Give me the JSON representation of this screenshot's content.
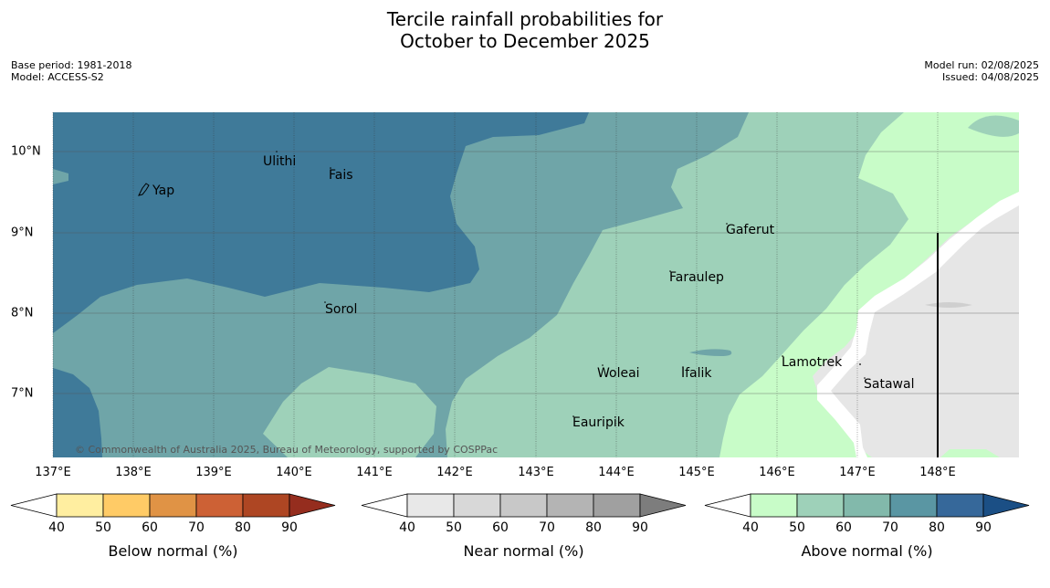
{
  "title_line1": "Tercile rainfall probabilities for",
  "title_line2": "October to December 2025",
  "base_period": "Base period: 1981-2018",
  "model": "Model: ACCESS-S2",
  "model_run": "Model run: 02/08/2025",
  "issued": "Issued: 04/08/2025",
  "copyright": "© Commonwealth of Australia 2025, Bureau of Meteorology, supported by COSPPac",
  "map": {
    "lon_labels": [
      "137°E",
      "138°E",
      "139°E",
      "140°E",
      "141°E",
      "142°E",
      "143°E",
      "144°E",
      "145°E",
      "146°E",
      "147°E",
      "148°E"
    ],
    "lat_labels": [
      "10°N",
      "9°N",
      "8°N",
      "7°N"
    ],
    "places": [
      {
        "name": "Ulithi"
      },
      {
        "name": "Fais"
      },
      {
        "name": "Yap"
      },
      {
        "name": "Gaferut"
      },
      {
        "name": "Faraulep"
      },
      {
        "name": "Sorol"
      },
      {
        "name": "Lamotrek"
      },
      {
        "name": "Woleai"
      },
      {
        "name": "Ifalik"
      },
      {
        "name": "Satawal"
      },
      {
        "name": "Eauripik"
      }
    ]
  },
  "colorbars": [
    {
      "label": "Below normal (%)",
      "ticks": [
        "40",
        "50",
        "60",
        "70",
        "80",
        "90"
      ],
      "colors": [
        "#ffffff",
        "#ffeea0",
        "#ffcb66",
        "#e09345",
        "#cd6135",
        "#ae4623",
        "#952d1e"
      ]
    },
    {
      "label": "Near normal (%)",
      "ticks": [
        "40",
        "50",
        "60",
        "70",
        "80",
        "90"
      ],
      "colors": [
        "#ffffff",
        "#e8e8e8",
        "#d8d8d8",
        "#c8c8c8",
        "#b4b4b4",
        "#a0a0a0",
        "#7d7d7d"
      ]
    },
    {
      "label": "Above normal (%)",
      "ticks": [
        "40",
        "50",
        "60",
        "70",
        "80",
        "90"
      ],
      "colors": [
        "#ffffff",
        "#c8fcc8",
        "#9ed1b9",
        "#82b9ab",
        "#5a96a3",
        "#36689a",
        "#1b4f85"
      ]
    }
  ]
}
